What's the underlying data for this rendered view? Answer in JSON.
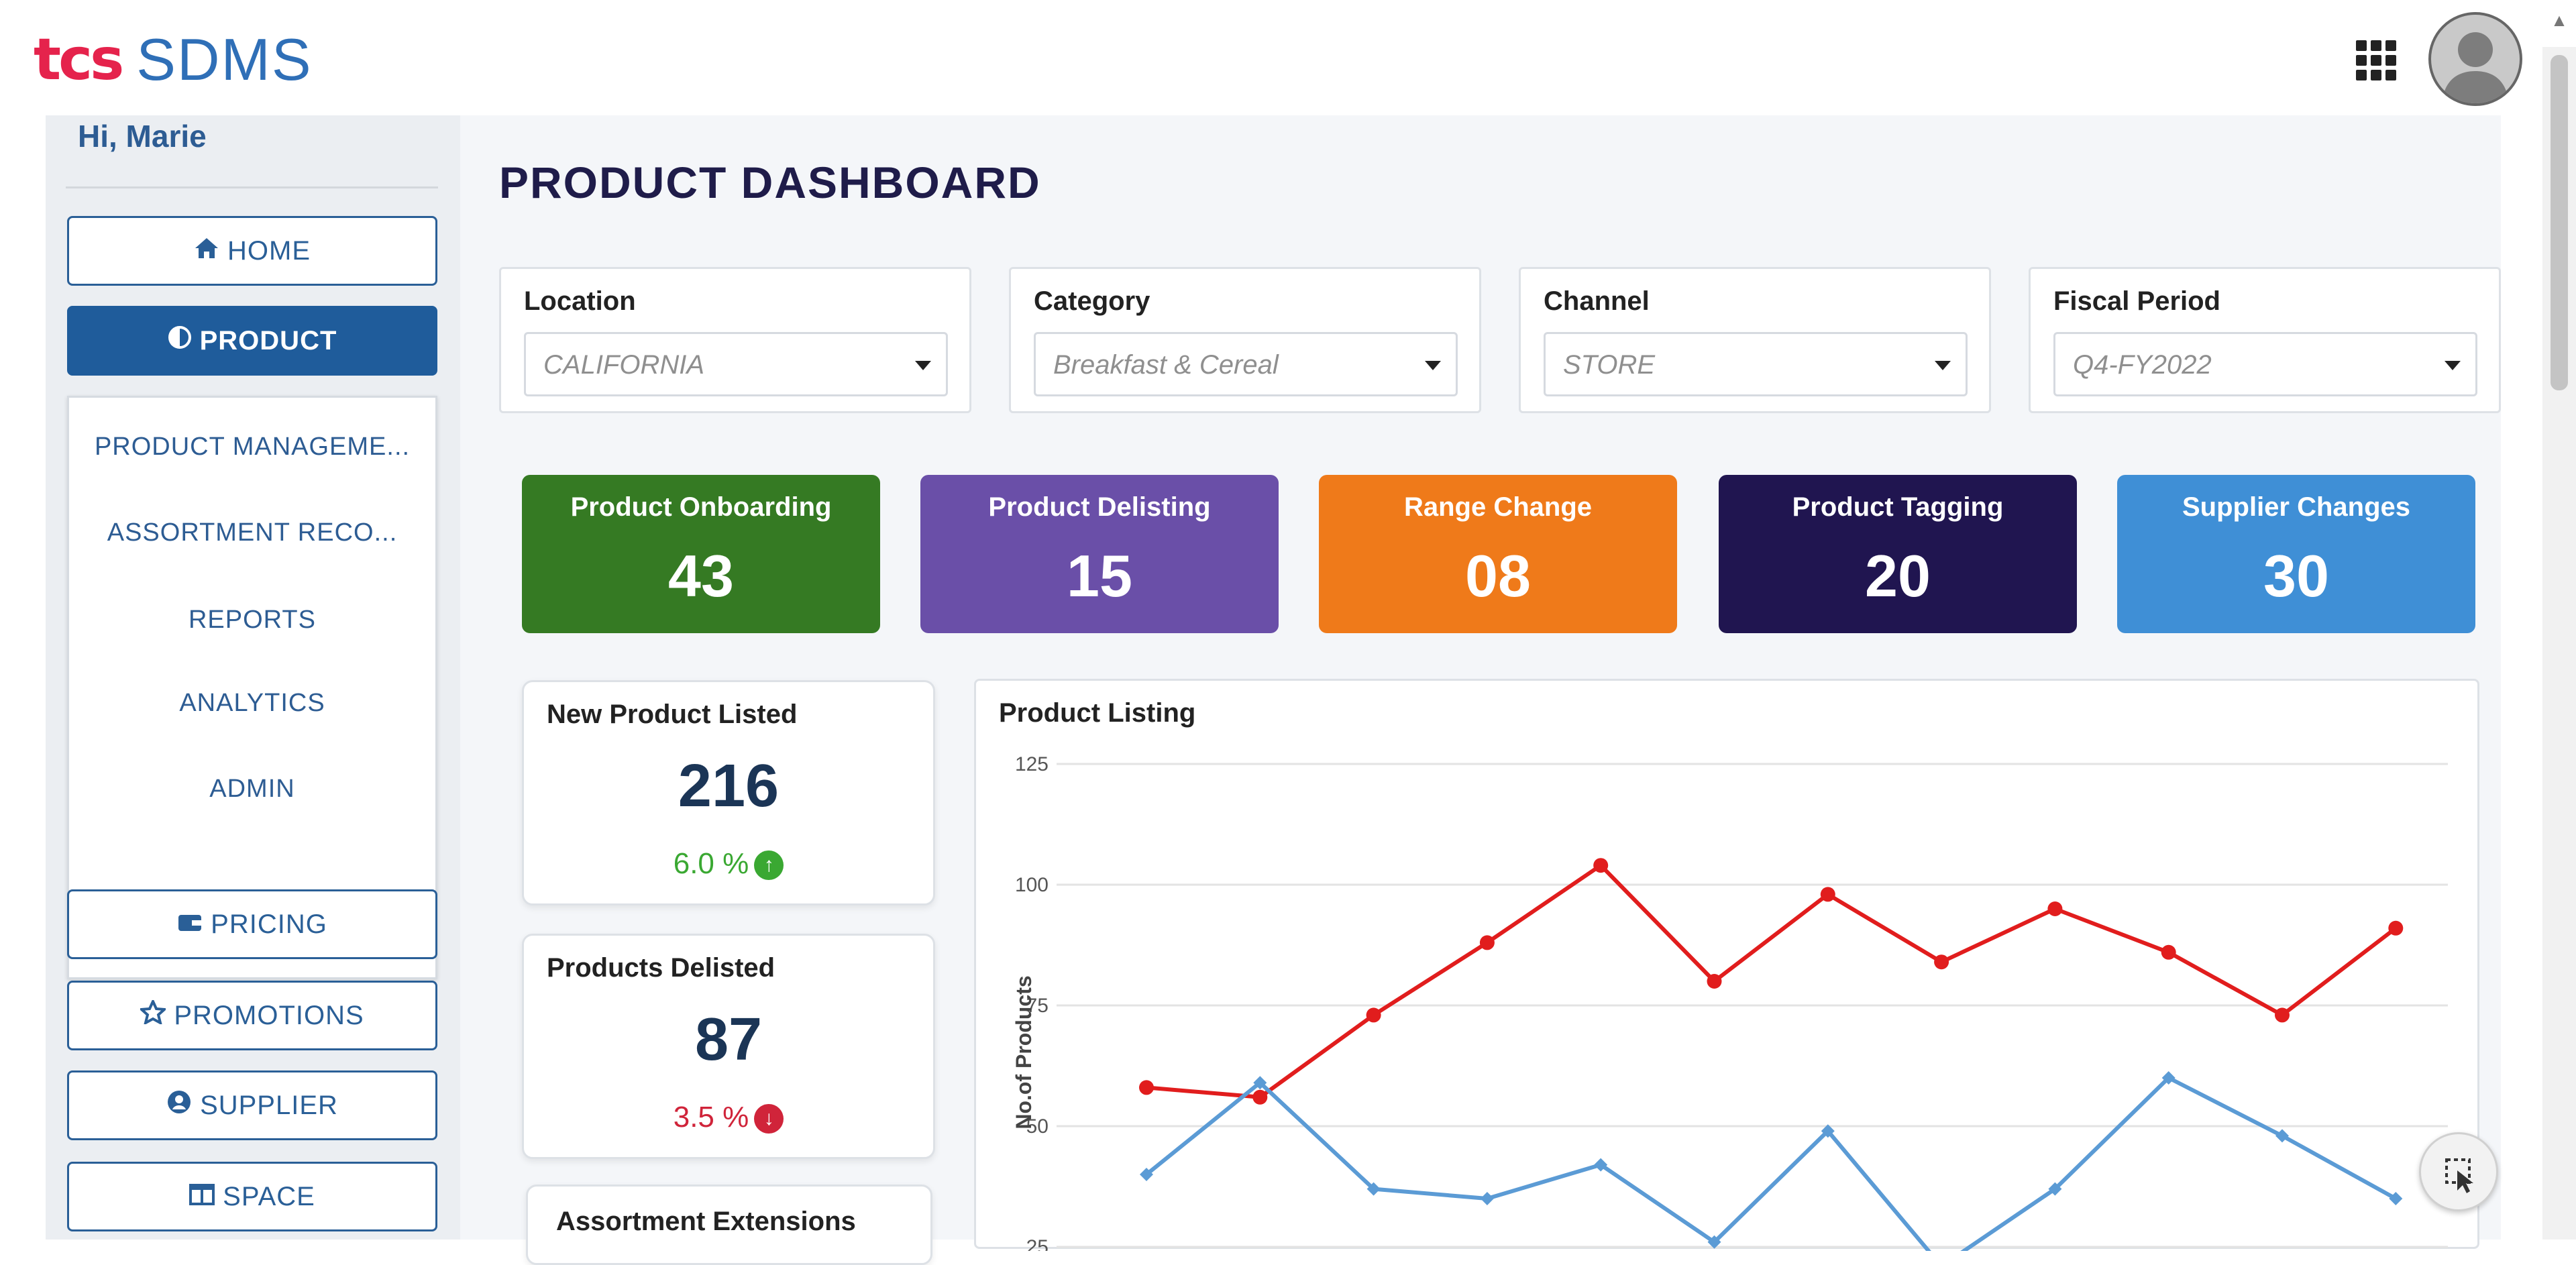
{
  "header": {
    "logo_prefix": "tcs",
    "logo_name": "SDMS",
    "apps_icon": "apps-grid-icon",
    "avatar_icon": "user-avatar-icon"
  },
  "sidebar": {
    "greeting": "Hi, Marie",
    "items": [
      {
        "label": "HOME",
        "icon": "home-icon"
      },
      {
        "label": "PRODUCT",
        "icon": "half-circle-icon",
        "active": true
      },
      {
        "label": "PRICING",
        "icon": "wallet-icon"
      },
      {
        "label": "PROMOTIONS",
        "icon": "star-icon"
      },
      {
        "label": "SUPPLIER",
        "icon": "user-circle-icon"
      },
      {
        "label": "SPACE",
        "icon": "columns-icon"
      }
    ],
    "submenu": [
      "PRODUCT MANAGEME...",
      "ASSORTMENT RECO...",
      "REPORTS",
      "ANALYTICS",
      "ADMIN"
    ]
  },
  "page": {
    "title": "PRODUCT DASHBOARD"
  },
  "filters": [
    {
      "label": "Location",
      "value": "CALIFORNIA"
    },
    {
      "label": "Category",
      "value": "Breakfast & Cereal"
    },
    {
      "label": "Channel",
      "value": "STORE"
    },
    {
      "label": "Fiscal Period",
      "value": "Q4-FY2022"
    }
  ],
  "kpis": [
    {
      "label": "Product Onboarding",
      "value": "43",
      "color": "#357a23"
    },
    {
      "label": "Product Delisting",
      "value": "15",
      "color": "#6a4fa8"
    },
    {
      "label": "Range Change",
      "value": "08",
      "color": "#ef7a1a"
    },
    {
      "label": "Product Tagging",
      "value": "20",
      "color": "#201550"
    },
    {
      "label": "Supplier Changes",
      "value": "30",
      "color": "#3f8fd6"
    }
  ],
  "stats": [
    {
      "title": "New Product Listed",
      "value": "216",
      "change": "6.0 %",
      "direction": "up",
      "color": "#3aa832"
    },
    {
      "title": "Products Delisted",
      "value": "87",
      "change": "3.5 %",
      "direction": "down",
      "color": "#d0243a"
    },
    {
      "title": "Assortment Extensions"
    }
  ],
  "chart_data": {
    "type": "line",
    "title": "Product Listing",
    "ylabel": "No.of Products",
    "xlabel": "",
    "ylim": [
      25,
      125
    ],
    "yticks": [
      "125",
      "100",
      "75",
      "50",
      "25"
    ],
    "x": [
      1,
      2,
      3,
      4,
      5,
      6,
      7,
      8,
      9,
      10,
      11,
      12
    ],
    "grid": true,
    "series": [
      {
        "color": "#e11d1d",
        "marker": "circle",
        "values": [
          58,
          56,
          73,
          88,
          104,
          80,
          98,
          84,
          95,
          86,
          73,
          91
        ]
      },
      {
        "color": "#5b9bd5",
        "marker": "diamond",
        "values": [
          40,
          59,
          37,
          35,
          42,
          26,
          49,
          21,
          37,
          60,
          48,
          35
        ]
      }
    ]
  },
  "fab": {
    "icon": "cursor-select-icon"
  }
}
